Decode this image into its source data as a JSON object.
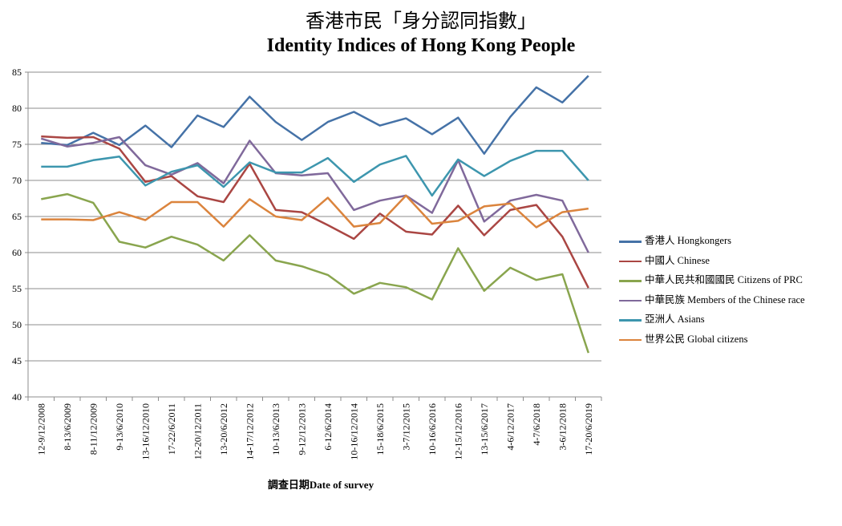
{
  "title_cn": "香港市民「身分認同指數」",
  "title_en": "Identity Indices of Hong Kong People",
  "chart_data": {
    "type": "line",
    "title": "香港市民「身分認同指數」 Identity Indices of Hong Kong People",
    "xlabel": "調查日期Date of survey",
    "ylabel": "",
    "ylim": [
      40,
      85
    ],
    "yticks": [
      40,
      45,
      50,
      55,
      60,
      65,
      70,
      75,
      80,
      85
    ],
    "grid": true,
    "legend": "right",
    "categories": [
      "12-9/12/2008",
      "8-13/6/2009",
      "8-11/12/2009",
      "9-13/6/2010",
      "13-16/12/2010",
      "17-22/6/2011",
      "12-20/12/2011",
      "13-20/6/2012",
      "14-17/12/2012",
      "10-13/6/2013",
      "9-12/12/2013",
      "6-12/6/2014",
      "10-16/12/2014",
      "15-18/6/2015",
      "3-7/12/2015",
      "10-16/6/2016",
      "12-15/12/2016",
      "13-15/6/2017",
      "4-6/12/2017",
      "4-7/6/2018",
      "3-6/12/2018",
      "17-20/6/2019"
    ],
    "series": [
      {
        "name": "香港人 Hongkongers",
        "color": "#4572A7",
        "values": [
          75.2,
          74.9,
          76.6,
          74.9,
          77.6,
          74.6,
          79.0,
          77.4,
          81.6,
          78.1,
          75.6,
          78.1,
          79.5,
          77.6,
          78.6,
          76.4,
          78.7,
          73.7,
          78.8,
          82.9,
          80.8,
          84.5
        ]
      },
      {
        "name": "中國人 Chinese",
        "color": "#AA4643",
        "values": [
          76.1,
          75.9,
          76.0,
          74.4,
          69.8,
          70.6,
          67.8,
          67.0,
          72.3,
          65.9,
          65.6,
          63.8,
          61.9,
          65.4,
          62.9,
          62.5,
          66.5,
          62.4,
          65.9,
          66.6,
          62.2,
          55.1
        ]
      },
      {
        "name": "中華人民共和國國民 Citizens  of PRC",
        "color": "#89A54E",
        "values": [
          67.4,
          68.1,
          66.9,
          61.5,
          60.7,
          62.2,
          61.1,
          58.9,
          62.4,
          58.9,
          58.1,
          56.9,
          54.3,
          55.8,
          55.2,
          53.5,
          60.6,
          54.7,
          57.9,
          56.2,
          57.0,
          46.1
        ]
      },
      {
        "name": "中華民族 Members of the Chinese race",
        "color": "#80699B",
        "values": [
          75.8,
          74.7,
          75.2,
          76.0,
          72.1,
          70.8,
          72.4,
          69.6,
          75.5,
          71.0,
          70.7,
          71.0,
          65.9,
          67.2,
          67.9,
          65.5,
          72.8,
          64.3,
          67.2,
          68.0,
          67.2,
          60.0
        ]
      },
      {
        "name": "亞洲人 Asians",
        "color": "#3D96AE",
        "values": [
          71.9,
          71.9,
          72.8,
          73.3,
          69.3,
          71.2,
          72.1,
          69.1,
          72.5,
          71.1,
          71.1,
          73.1,
          69.8,
          72.2,
          73.4,
          67.9,
          72.9,
          70.6,
          72.7,
          74.1,
          74.1,
          70.0
        ]
      },
      {
        "name": "世界公民 Global citizens",
        "color": "#DB843D",
        "values": [
          64.6,
          64.6,
          64.5,
          65.6,
          64.5,
          67.0,
          67.0,
          63.6,
          67.4,
          65.0,
          64.5,
          67.6,
          63.6,
          64.1,
          67.9,
          64.0,
          64.4,
          66.4,
          66.8,
          63.5,
          65.6,
          66.1
        ]
      }
    ]
  }
}
